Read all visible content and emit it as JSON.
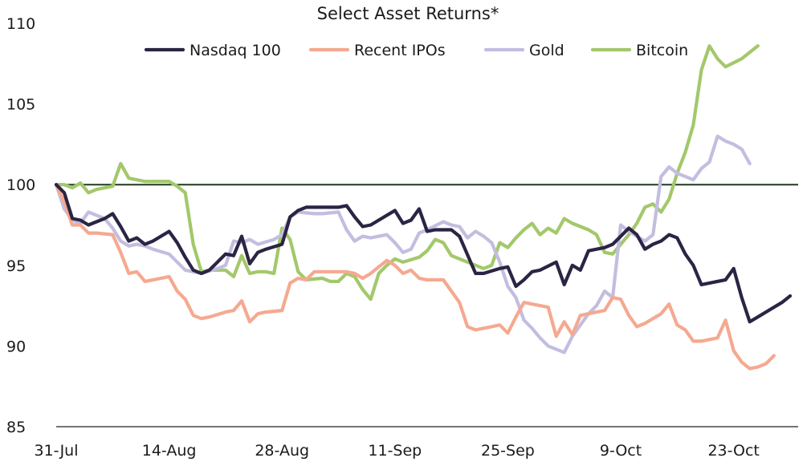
{
  "chart_data": {
    "type": "line",
    "title": "Select Asset Returns*",
    "xlabel": "",
    "ylabel": "",
    "ylim": [
      85,
      110
    ],
    "yticks": [
      85,
      90,
      95,
      100,
      105,
      110
    ],
    "x_tick_labels": [
      "31-Jul",
      "14-Aug",
      "28-Aug",
      "11-Sep",
      "25-Sep",
      "9-Oct",
      "23-Oct"
    ],
    "x_tick_positions": [
      0,
      14,
      28,
      42,
      56,
      70,
      84
    ],
    "xlim": [
      0,
      92
    ],
    "legend_position": "top",
    "grid": false,
    "reference_line": {
      "y": 100,
      "color": "#1f3a1f"
    },
    "series": [
      {
        "name": "Nasdaq 100",
        "color": "#2b2444",
        "points": [
          [
            0,
            100
          ],
          [
            1,
            99.5
          ],
          [
            2,
            97.9
          ],
          [
            3,
            97.8
          ],
          [
            4,
            97.5
          ],
          [
            5,
            97.7
          ],
          [
            6,
            97.9
          ],
          [
            7,
            98.2
          ],
          [
            8,
            97.4
          ],
          [
            9,
            96.5
          ],
          [
            10,
            96.7
          ],
          [
            11,
            96.3
          ],
          [
            12,
            96.5
          ],
          [
            14,
            97.1
          ],
          [
            15,
            96.4
          ],
          [
            16,
            95.5
          ],
          [
            17,
            94.7
          ],
          [
            18,
            94.5
          ],
          [
            19,
            94.7
          ],
          [
            20,
            95.2
          ],
          [
            21,
            95.7
          ],
          [
            22,
            95.6
          ],
          [
            23,
            96.8
          ],
          [
            24,
            95.1
          ],
          [
            25,
            95.8
          ],
          [
            26,
            96
          ],
          [
            28,
            96.3
          ],
          [
            29,
            98
          ],
          [
            30,
            98.4
          ],
          [
            31,
            98.6
          ],
          [
            33,
            98.6
          ],
          [
            35,
            98.6
          ],
          [
            36,
            98.7
          ],
          [
            37,
            98
          ],
          [
            38,
            97.4
          ],
          [
            39,
            97.5
          ],
          [
            41,
            98.1
          ],
          [
            42,
            98.4
          ],
          [
            43,
            97.6
          ],
          [
            44,
            97.8
          ],
          [
            45,
            98.5
          ],
          [
            46,
            97.1
          ],
          [
            47,
            97.2
          ],
          [
            48,
            97.2
          ],
          [
            49,
            97.2
          ],
          [
            50,
            96.8
          ],
          [
            52,
            94.5
          ],
          [
            53,
            94.5
          ],
          [
            55,
            94.8
          ],
          [
            56,
            94.9
          ],
          [
            57,
            93.7
          ],
          [
            58,
            94.1
          ],
          [
            59,
            94.6
          ],
          [
            60,
            94.7
          ],
          [
            62,
            95.2
          ],
          [
            63,
            93.8
          ],
          [
            64,
            95
          ],
          [
            65,
            94.7
          ],
          [
            66,
            95.9
          ],
          [
            68,
            96.1
          ],
          [
            69,
            96.3
          ],
          [
            71,
            97.3
          ],
          [
            72,
            96.9
          ],
          [
            73,
            96
          ],
          [
            74,
            96.3
          ],
          [
            75,
            96.5
          ],
          [
            76,
            96.9
          ],
          [
            77,
            96.7
          ],
          [
            78,
            95.7
          ],
          [
            79,
            95
          ],
          [
            80,
            93.8
          ],
          [
            81,
            93.9
          ],
          [
            83,
            94.1
          ],
          [
            84,
            94.8
          ],
          [
            85,
            93
          ],
          [
            86,
            91.5
          ],
          [
            87,
            91.8
          ],
          [
            89,
            92.4
          ],
          [
            90,
            92.7
          ],
          [
            91,
            93.1
          ]
        ]
      },
      {
        "name": "Recent IPOs",
        "color": "#f5a990",
        "points": [
          [
            0,
            100
          ],
          [
            1,
            98.9
          ],
          [
            2,
            97.5
          ],
          [
            3,
            97.5
          ],
          [
            4,
            97
          ],
          [
            5,
            97
          ],
          [
            7,
            96.9
          ],
          [
            8,
            95.8
          ],
          [
            9,
            94.5
          ],
          [
            10,
            94.6
          ],
          [
            11,
            94
          ],
          [
            12,
            94.1
          ],
          [
            13,
            94.2
          ],
          [
            14,
            94.3
          ],
          [
            15,
            93.4
          ],
          [
            16,
            92.9
          ],
          [
            17,
            91.9
          ],
          [
            18,
            91.7
          ],
          [
            19,
            91.8
          ],
          [
            21,
            92.1
          ],
          [
            22,
            92.2
          ],
          [
            23,
            92.8
          ],
          [
            24,
            91.5
          ],
          [
            25,
            92
          ],
          [
            26,
            92.1
          ],
          [
            28,
            92.2
          ],
          [
            29,
            93.9
          ],
          [
            30,
            94.2
          ],
          [
            31,
            94.1
          ],
          [
            32,
            94.6
          ],
          [
            33,
            94.6
          ],
          [
            35,
            94.6
          ],
          [
            36,
            94.6
          ],
          [
            37,
            94.5
          ],
          [
            38,
            94.2
          ],
          [
            39,
            94.5
          ],
          [
            40,
            94.9
          ],
          [
            41,
            95.3
          ],
          [
            42,
            95
          ],
          [
            43,
            94.5
          ],
          [
            44,
            94.7
          ],
          [
            45,
            94.2
          ],
          [
            46,
            94.1
          ],
          [
            48,
            94.1
          ],
          [
            49,
            93.4
          ],
          [
            50,
            92.7
          ],
          [
            51,
            91.2
          ],
          [
            52,
            91
          ],
          [
            53,
            91.1
          ],
          [
            54,
            91.2
          ],
          [
            55,
            91.3
          ],
          [
            56,
            90.8
          ],
          [
            57,
            91.8
          ],
          [
            58,
            92.7
          ],
          [
            59,
            92.6
          ],
          [
            60,
            92.5
          ],
          [
            61,
            92.4
          ],
          [
            62,
            90.6
          ],
          [
            63,
            91.5
          ],
          [
            64,
            90.7
          ],
          [
            65,
            91.9
          ],
          [
            66,
            92
          ],
          [
            67,
            92.1
          ],
          [
            68,
            92.2
          ],
          [
            69,
            93
          ],
          [
            70,
            92.9
          ],
          [
            71,
            91.9
          ],
          [
            72,
            91.2
          ],
          [
            73,
            91.4
          ],
          [
            74,
            91.7
          ],
          [
            75,
            92
          ],
          [
            76,
            92.6
          ],
          [
            77,
            91.3
          ],
          [
            78,
            91
          ],
          [
            79,
            90.3
          ],
          [
            80,
            90.3
          ],
          [
            82,
            90.5
          ],
          [
            83,
            91.6
          ],
          [
            84,
            89.7
          ],
          [
            85,
            89
          ],
          [
            86,
            88.6
          ],
          [
            87,
            88.7
          ],
          [
            88,
            88.9
          ],
          [
            89,
            89.4
          ]
        ]
      },
      {
        "name": "Gold",
        "color": "#c3bee0",
        "points": [
          [
            0,
            100
          ],
          [
            1,
            98.5
          ],
          [
            2,
            97.8
          ],
          [
            3,
            97.6
          ],
          [
            4,
            98.3
          ],
          [
            5,
            98.1
          ],
          [
            6,
            97.9
          ],
          [
            7,
            97.3
          ],
          [
            8,
            96.5
          ],
          [
            9,
            96.2
          ],
          [
            10,
            96.3
          ],
          [
            11,
            96.2
          ],
          [
            12,
            96
          ],
          [
            14,
            95.7
          ],
          [
            15,
            95.2
          ],
          [
            16,
            94.7
          ],
          [
            17,
            94.6
          ],
          [
            18,
            94.5
          ],
          [
            20,
            94.8
          ],
          [
            21,
            95
          ],
          [
            22,
            96.5
          ],
          [
            23,
            96.4
          ],
          [
            24,
            96.6
          ],
          [
            25,
            96.3
          ],
          [
            27,
            96.6
          ],
          [
            28,
            96.9
          ],
          [
            29,
            98
          ],
          [
            30,
            98.3
          ],
          [
            32,
            98.2
          ],
          [
            33,
            98.2
          ],
          [
            35,
            98.3
          ],
          [
            36,
            97.2
          ],
          [
            37,
            96.5
          ],
          [
            38,
            96.8
          ],
          [
            39,
            96.7
          ],
          [
            41,
            96.9
          ],
          [
            42,
            96.4
          ],
          [
            43,
            95.8
          ],
          [
            44,
            96
          ],
          [
            45,
            97
          ],
          [
            46,
            97.2
          ],
          [
            48,
            97.7
          ],
          [
            49,
            97.5
          ],
          [
            50,
            97.4
          ],
          [
            51,
            96.7
          ],
          [
            52,
            97.1
          ],
          [
            53,
            96.8
          ],
          [
            54,
            96.4
          ],
          [
            55,
            95.2
          ],
          [
            56,
            93.7
          ],
          [
            57,
            93
          ],
          [
            58,
            91.6
          ],
          [
            59,
            91.1
          ],
          [
            60,
            90.5
          ],
          [
            61,
            90
          ],
          [
            62,
            89.8
          ],
          [
            63,
            89.6
          ],
          [
            64,
            90.6
          ],
          [
            65,
            91.3
          ],
          [
            66,
            92
          ],
          [
            67,
            92.5
          ],
          [
            68,
            93.4
          ],
          [
            69,
            93
          ],
          [
            70,
            97.5
          ],
          [
            71,
            97.1
          ],
          [
            72,
            96.8
          ],
          [
            73,
            96.5
          ],
          [
            74,
            96.9
          ],
          [
            75,
            100.5
          ],
          [
            76,
            101.1
          ],
          [
            77,
            100.7
          ],
          [
            78,
            100.5
          ],
          [
            79,
            100.3
          ],
          [
            80,
            101
          ],
          [
            81,
            101.4
          ],
          [
            82,
            103
          ],
          [
            83,
            102.7
          ],
          [
            84,
            102.5
          ],
          [
            85,
            102.2
          ],
          [
            86,
            101.3
          ]
        ]
      },
      {
        "name": "Bitcoin",
        "color": "#a3c86b",
        "points": [
          [
            0,
            100
          ],
          [
            1,
            100
          ],
          [
            2,
            99.8
          ],
          [
            3,
            100.1
          ],
          [
            4,
            99.5
          ],
          [
            5,
            99.7
          ],
          [
            6,
            99.8
          ],
          [
            7,
            99.9
          ],
          [
            8,
            101.3
          ],
          [
            9,
            100.4
          ],
          [
            10,
            100.3
          ],
          [
            11,
            100.2
          ],
          [
            14,
            100.2
          ],
          [
            15,
            99.9
          ],
          [
            16,
            99.5
          ],
          [
            17,
            96.3
          ],
          [
            18,
            94.6
          ],
          [
            19,
            94.7
          ],
          [
            20,
            94.7
          ],
          [
            21,
            94.7
          ],
          [
            22,
            94.3
          ],
          [
            23,
            95.6
          ],
          [
            24,
            94.5
          ],
          [
            25,
            94.6
          ],
          [
            26,
            94.6
          ],
          [
            27,
            94.5
          ],
          [
            28,
            97.3
          ],
          [
            29,
            96.6
          ],
          [
            30,
            94.6
          ],
          [
            31,
            94.1
          ],
          [
            33,
            94.2
          ],
          [
            34,
            94
          ],
          [
            35,
            94
          ],
          [
            36,
            94.5
          ],
          [
            37,
            94.3
          ],
          [
            38,
            93.5
          ],
          [
            39,
            92.9
          ],
          [
            40,
            94.5
          ],
          [
            41,
            95
          ],
          [
            42,
            95.4
          ],
          [
            43,
            95.2
          ],
          [
            45,
            95.5
          ],
          [
            46,
            95.9
          ],
          [
            47,
            96.6
          ],
          [
            48,
            96.4
          ],
          [
            49,
            95.6
          ],
          [
            50,
            95.4
          ],
          [
            51,
            95.2
          ],
          [
            52,
            95
          ],
          [
            53,
            94.8
          ],
          [
            54,
            95
          ],
          [
            55,
            96.4
          ],
          [
            56,
            96.1
          ],
          [
            57,
            96.7
          ],
          [
            58,
            97.2
          ],
          [
            59,
            97.6
          ],
          [
            60,
            96.9
          ],
          [
            61,
            97.3
          ],
          [
            62,
            97
          ],
          [
            63,
            97.9
          ],
          [
            64,
            97.6
          ],
          [
            66,
            97.2
          ],
          [
            67,
            96.9
          ],
          [
            68,
            95.8
          ],
          [
            69,
            95.7
          ],
          [
            70,
            96.3
          ],
          [
            71,
            96.9
          ],
          [
            72,
            97.6
          ],
          [
            73,
            98.6
          ],
          [
            74,
            98.8
          ],
          [
            75,
            98.3
          ],
          [
            76,
            99.1
          ],
          [
            77,
            100.7
          ],
          [
            78,
            102
          ],
          [
            79,
            103.7
          ],
          [
            80,
            107.1
          ],
          [
            81,
            108.6
          ],
          [
            82,
            107.8
          ],
          [
            83,
            107.3
          ],
          [
            85,
            107.8
          ],
          [
            86,
            108.2
          ],
          [
            87,
            108.6
          ]
        ]
      }
    ]
  }
}
